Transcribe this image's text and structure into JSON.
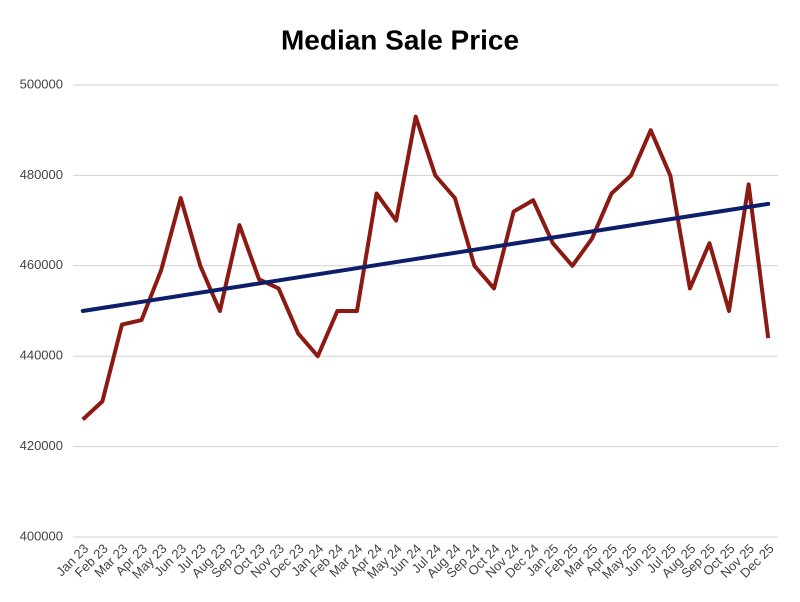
{
  "chart_data": {
    "type": "line",
    "title": "Median Sale Price",
    "categories": [
      "Jan 23",
      "Feb 23",
      "Mar 23",
      "Apr 23",
      "May 23",
      "Jun 23",
      "Jul 23",
      "Aug 23",
      "Sep 23",
      "Oct 23",
      "Nov 23",
      "Dec 23",
      "Jan 24",
      "Feb 24",
      "Mar 24",
      "Apr 24",
      "May 24",
      "Jun 24",
      "Jul 24",
      "Aug 24",
      "Sep 24",
      "Oct 24",
      "Nov 24",
      "Dec 24",
      "Jan 25",
      "Feb 25",
      "Mar 25",
      "Apr 25",
      "May 25",
      "Jun 25",
      "Jul 25",
      "Aug 25",
      "Sep 25",
      "Oct 25",
      "Nov 25",
      "Dec 25"
    ],
    "values": [
      426000,
      430000,
      447000,
      448000,
      459000,
      475000,
      460000,
      450000,
      469000,
      457000,
      455000,
      445000,
      440000,
      450000,
      450000,
      476000,
      470000,
      493000,
      480000,
      475000,
      460000,
      455000,
      472000,
      474500,
      465000,
      460000,
      466000,
      476000,
      480000,
      490000,
      480000,
      455000,
      465000,
      450000,
      478000,
      444000
    ],
    "color": "#8b1a12",
    "trendline": {
      "start": 450000,
      "end": 473700,
      "color": "#0d1f6b"
    },
    "ylim": [
      400000,
      500000
    ],
    "yticks": [
      400000,
      420000,
      440000,
      460000,
      480000,
      500000
    ],
    "grid": true
  }
}
